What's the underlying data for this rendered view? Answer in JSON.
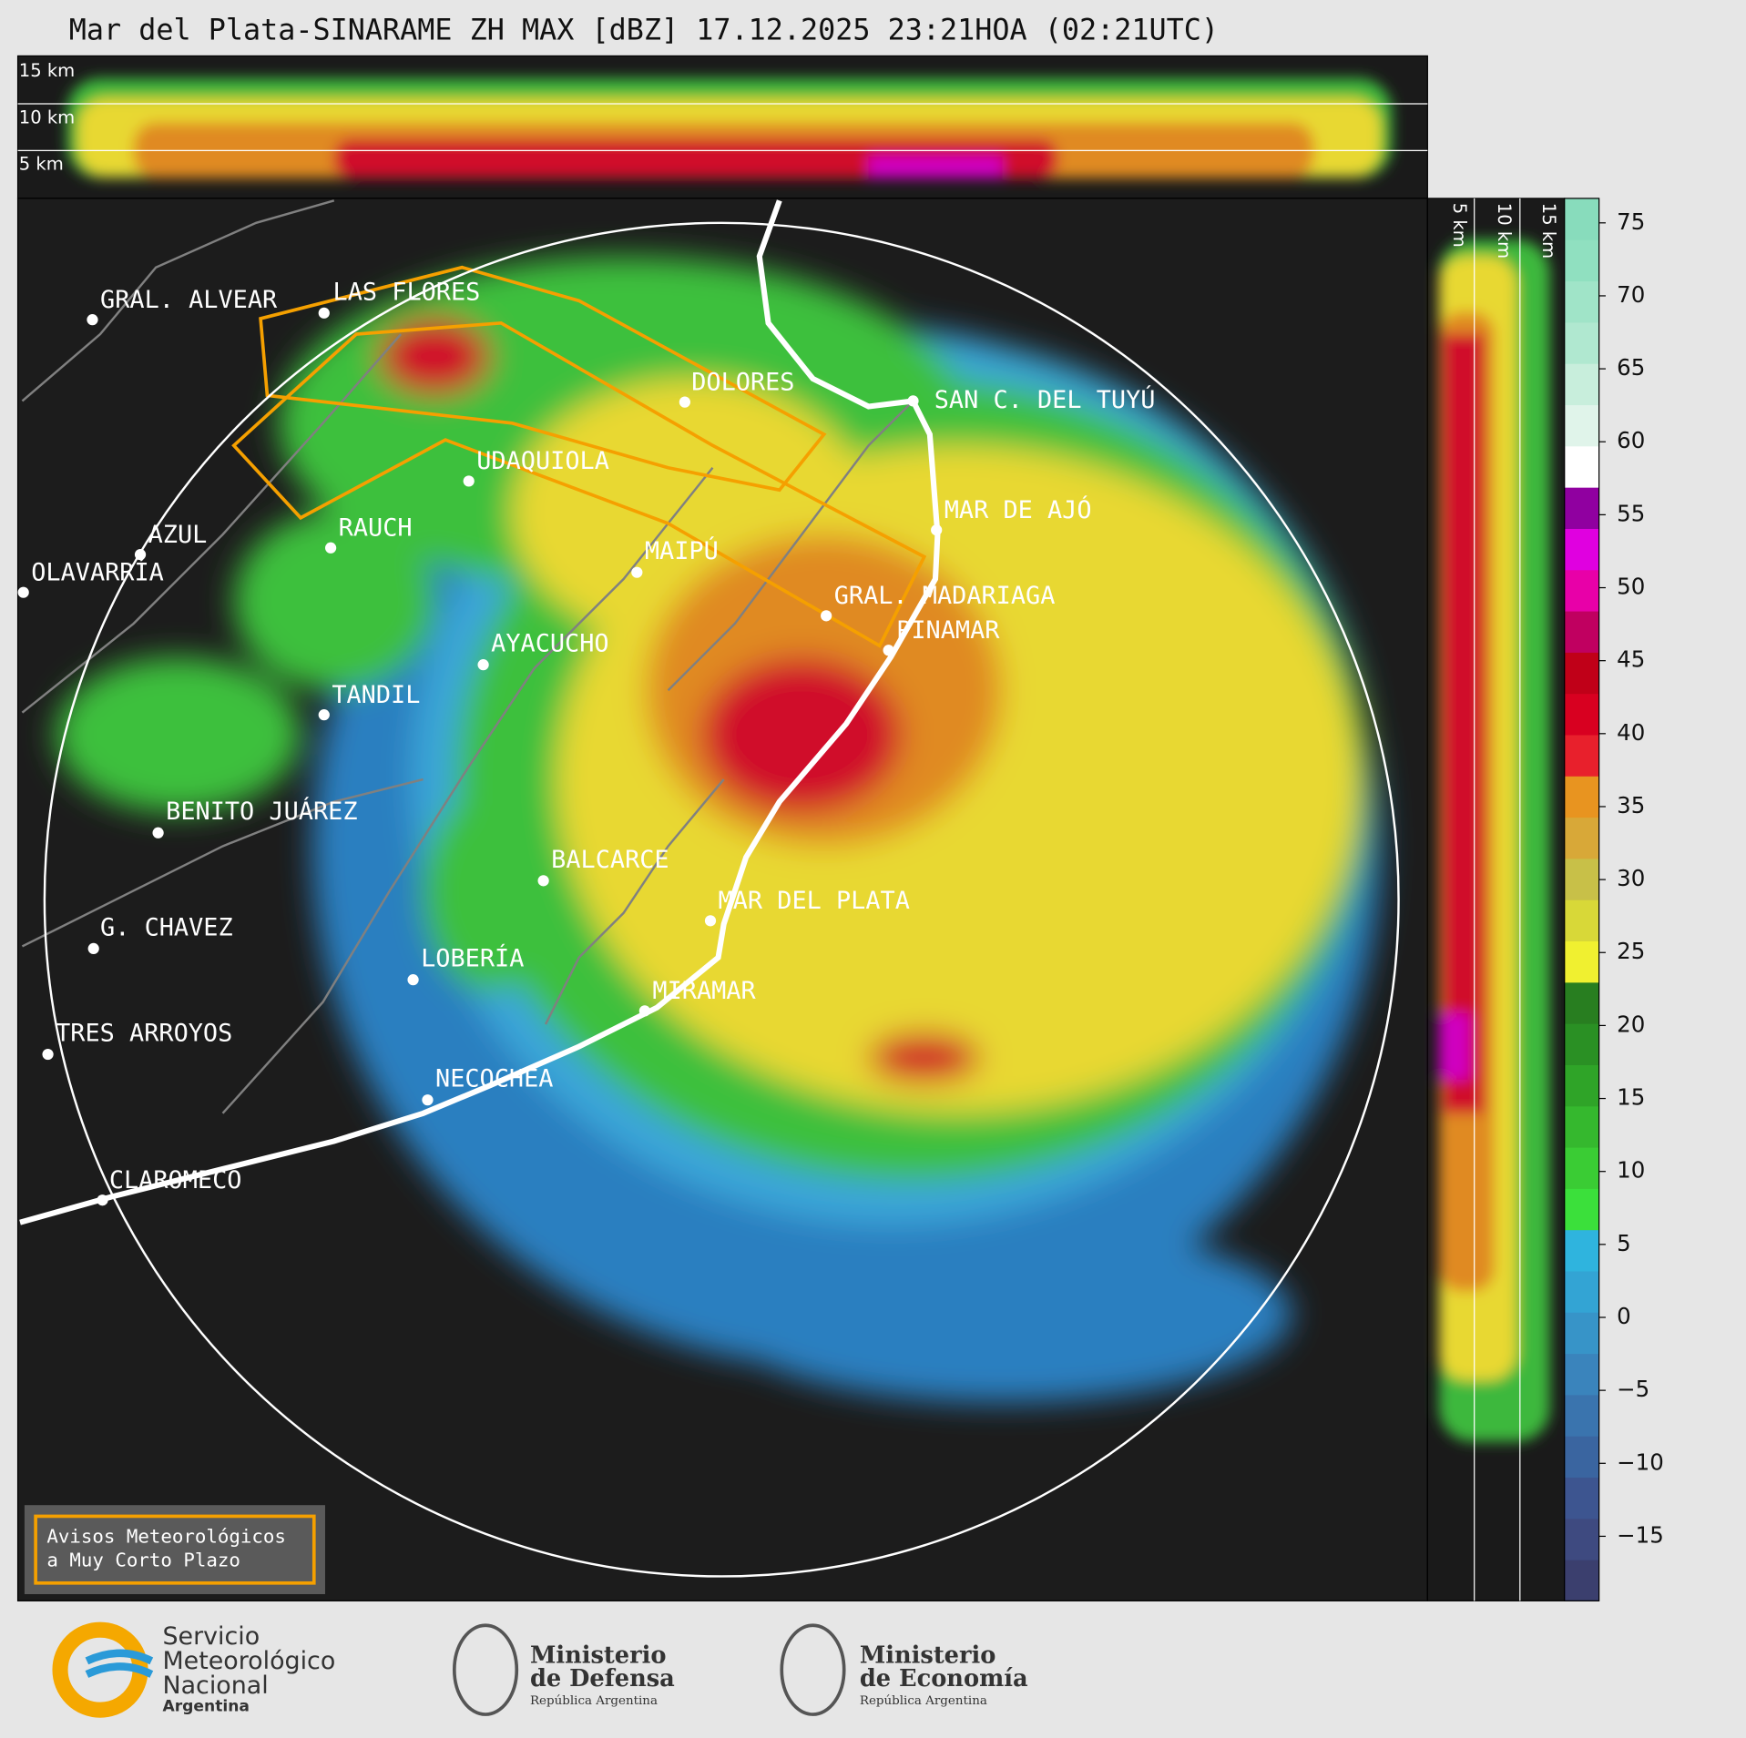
{
  "header": {
    "title": "Mar del Plata-SINARAME ZH MAX [dBZ] 17.12.2025 23:21HOA (02:21UTC)"
  },
  "top_panel": {
    "labels": [
      "15 km",
      "10 km",
      "5 km"
    ]
  },
  "side_panel": {
    "labels": [
      "5 km",
      "10 km",
      "15 km"
    ]
  },
  "colorbar": {
    "ticks": [
      "75",
      "70",
      "65",
      "60",
      "55",
      "50",
      "45",
      "40",
      "35",
      "30",
      "25",
      "20",
      "15",
      "10",
      "5",
      "0",
      "−5",
      "−10",
      "−15"
    ]
  },
  "cities": [
    "GRAL. ALVEAR",
    "LAS FLORES",
    "DOLORES",
    "SAN C. DEL TUYÚ",
    "UDAQUIOLA",
    "AZUL",
    "RAUCH",
    "OLAVARRÍA",
    "MAIPÚ",
    "MAR DE AJÓ",
    "GRAL. MADARIAGA",
    "PINAMAR",
    "AYACUCHO",
    "TANDIL",
    "BENITO JUÁREZ",
    "BALCARCE",
    "MAR DEL PLATA",
    "G. CHAVEZ",
    "LOBERÍA",
    "MIRAMAR",
    "TRES ARROYOS",
    "NECOCHEA",
    "CLAROMECO"
  ],
  "legend": {
    "lines": [
      "Avisos Meteorológicos",
      "a Muy Corto Plazo"
    ]
  },
  "footer": {
    "smn": [
      "Servicio",
      "Meteorológico",
      "Nacional",
      "Argentina"
    ],
    "defensa": [
      "Ministerio",
      "de Defensa",
      "República Argentina"
    ],
    "economia": [
      "Ministerio",
      "de Economía",
      "República Argentina"
    ]
  }
}
